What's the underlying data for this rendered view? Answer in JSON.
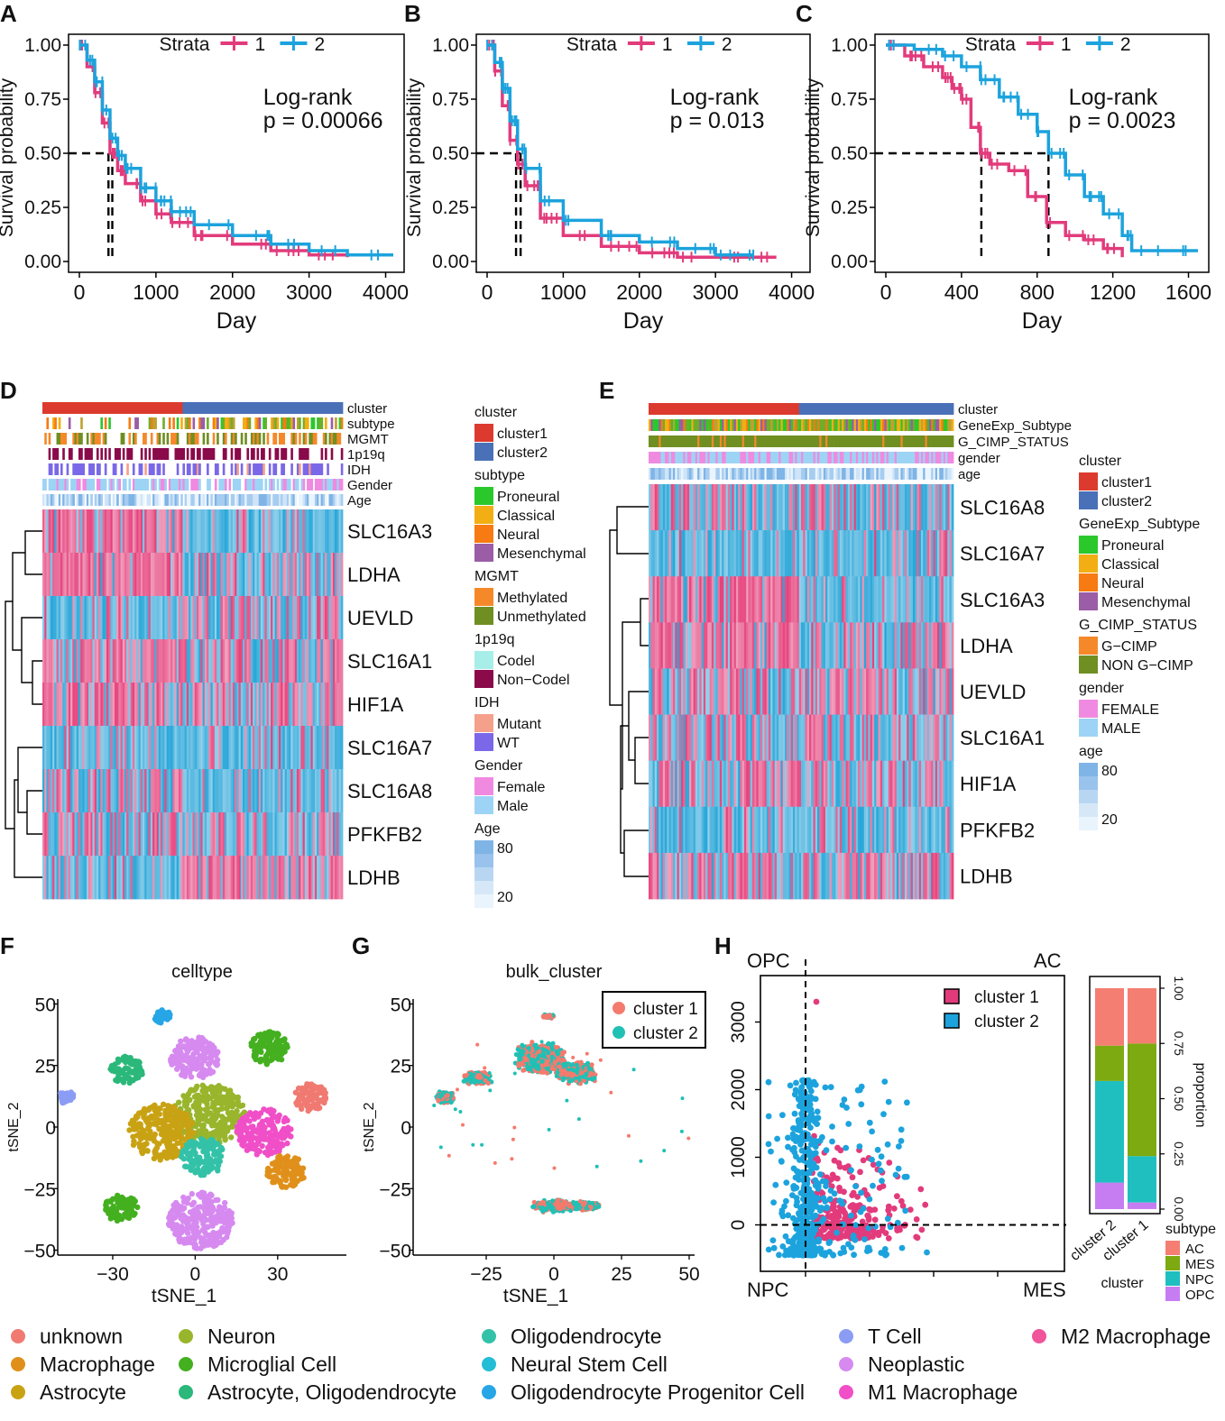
{
  "chart_data": [
    {
      "panel": "A",
      "type": "line",
      "title": "",
      "xlabel": "Day",
      "ylabel": "Survival probability",
      "xticks": [
        "0",
        "1000",
        "2000",
        "3000",
        "4000"
      ],
      "xlim": [
        0,
        4100
      ],
      "yticks": [
        "0.00",
        "0.25",
        "0.50",
        "0.75",
        "1.00"
      ],
      "ylim": [
        0,
        1
      ],
      "legend_title": "Strata",
      "legend": [
        "1",
        "2"
      ],
      "annotation": [
        "Log-rank",
        "p = 0.00066"
      ],
      "median": [
        380,
        430
      ],
      "series": [
        {
          "name": "1",
          "color": "#e23b7c",
          "x": [
            0,
            100,
            200,
            300,
            400,
            500,
            600,
            800,
            1000,
            1200,
            1500,
            2000,
            2500,
            3000,
            3500
          ],
          "y": [
            1.0,
            0.9,
            0.78,
            0.64,
            0.5,
            0.42,
            0.36,
            0.28,
            0.22,
            0.18,
            0.12,
            0.08,
            0.05,
            0.03,
            0.02
          ]
        },
        {
          "name": "2",
          "color": "#1ca3dd",
          "x": [
            0,
            100,
            200,
            300,
            400,
            500,
            600,
            800,
            1000,
            1200,
            1500,
            2000,
            2500,
            3000,
            3500,
            4100
          ],
          "y": [
            1.0,
            0.93,
            0.83,
            0.7,
            0.57,
            0.49,
            0.43,
            0.34,
            0.28,
            0.23,
            0.17,
            0.12,
            0.08,
            0.05,
            0.03,
            0.03
          ]
        }
      ]
    },
    {
      "panel": "B",
      "type": "line",
      "title": "",
      "xlabel": "Day",
      "ylabel": "Survival probability",
      "xticks": [
        "0",
        "1000",
        "2000",
        "3000",
        "4000"
      ],
      "xlim": [
        0,
        4100
      ],
      "yticks": [
        "0.00",
        "0.25",
        "0.50",
        "0.75",
        "1.00"
      ],
      "ylim": [
        0,
        1
      ],
      "legend_title": "Strata",
      "legend": [
        "1",
        "2"
      ],
      "annotation": [
        "Log-rank",
        "p = 0.013"
      ],
      "median": [
        380,
        440
      ],
      "series": [
        {
          "name": "1",
          "color": "#e23b7c",
          "x": [
            0,
            100,
            200,
            300,
            400,
            500,
            700,
            1000,
            1500,
            2000,
            2500,
            3000,
            3800
          ],
          "y": [
            1.0,
            0.88,
            0.72,
            0.56,
            0.45,
            0.35,
            0.2,
            0.12,
            0.07,
            0.04,
            0.02,
            0.02,
            0.02
          ]
        },
        {
          "name": "2",
          "color": "#1ca3dd",
          "x": [
            0,
            100,
            200,
            300,
            400,
            500,
            700,
            1000,
            1500,
            2000,
            2500,
            3000,
            3500
          ],
          "y": [
            1.0,
            0.92,
            0.8,
            0.65,
            0.52,
            0.43,
            0.28,
            0.19,
            0.12,
            0.09,
            0.06,
            0.03,
            0.03
          ]
        }
      ]
    },
    {
      "panel": "C",
      "type": "line",
      "title": "",
      "xlabel": "Day",
      "ylabel": "Survival probability",
      "xticks": [
        "0",
        "400",
        "800",
        "1200",
        "1600"
      ],
      "xlim": [
        0,
        1650
      ],
      "yticks": [
        "0.00",
        "0.25",
        "0.50",
        "0.75",
        "1.00"
      ],
      "ylim": [
        0,
        1
      ],
      "legend_title": "Strata",
      "legend": [
        "1",
        "2"
      ],
      "annotation": [
        "Log-rank",
        "p = 0.0023"
      ],
      "median": [
        505,
        860
      ],
      "series": [
        {
          "name": "1",
          "color": "#e23b7c",
          "x": [
            0,
            100,
            200,
            300,
            350,
            400,
            450,
            500,
            550,
            650,
            750,
            850,
            950,
            1050,
            1150,
            1250
          ],
          "y": [
            1.0,
            0.95,
            0.9,
            0.85,
            0.8,
            0.75,
            0.62,
            0.5,
            0.45,
            0.42,
            0.3,
            0.18,
            0.12,
            0.1,
            0.06,
            0.02
          ]
        },
        {
          "name": "2",
          "color": "#1ca3dd",
          "x": [
            0,
            150,
            300,
            400,
            500,
            600,
            700,
            800,
            860,
            950,
            1050,
            1150,
            1250,
            1300,
            1650
          ],
          "y": [
            1.0,
            0.98,
            0.95,
            0.9,
            0.84,
            0.76,
            0.68,
            0.6,
            0.5,
            0.4,
            0.3,
            0.22,
            0.12,
            0.05,
            0.05
          ]
        }
      ]
    },
    {
      "panel": "D",
      "type": "heatmap",
      "annotation_tracks": [
        "cluster",
        "subtype",
        "MGMT",
        "1p19q",
        "IDH",
        "Gender",
        "Age"
      ],
      "rows": [
        "SLC16A3",
        "LDHA",
        "UEVLD",
        "SLC16A1",
        "HIF1A",
        "SLC16A7",
        "SLC16A8",
        "PFKFB2",
        "LDHB"
      ],
      "row_pattern_cluster1_vs_cluster2": [
        "high-low",
        "high-mid",
        "low-mid",
        "high-mid",
        "high-mid",
        "low-low",
        "mid-low",
        "mid-mid",
        "low-high"
      ],
      "legend": [
        {
          "title": "cluster",
          "items": [
            [
              "cluster1",
              "#dc3a2e"
            ],
            [
              "cluster2",
              "#4a70b8"
            ]
          ]
        },
        {
          "title": "subtype",
          "items": [
            [
              "Proneural",
              "#2bc82b"
            ],
            [
              "Classical",
              "#f2ae13"
            ],
            [
              "Neural",
              "#f77a12"
            ],
            [
              "Mesenchymal",
              "#9a5da6"
            ]
          ]
        },
        {
          "title": "MGMT",
          "items": [
            [
              "Methylated",
              "#f5892a"
            ],
            [
              "Unmethylated",
              "#6f8f22"
            ]
          ]
        },
        {
          "title": "1p19q",
          "items": [
            [
              "Codel",
              "#a8eee8"
            ],
            [
              "Non−Codel",
              "#8a0a4a"
            ]
          ]
        },
        {
          "title": "IDH",
          "items": [
            [
              "Mutant",
              "#f5a08a"
            ],
            [
              "WT",
              "#7b68e8"
            ]
          ]
        },
        {
          "title": "Gender",
          "items": [
            [
              "Female",
              "#f08ae0"
            ],
            [
              "Male",
              "#9dd4f5"
            ]
          ]
        },
        {
          "title": "Age",
          "items": [
            [
              "80",
              "#7fb4e6"
            ],
            [
              "20",
              "#eaf4fc"
            ]
          ]
        }
      ]
    },
    {
      "panel": "E",
      "type": "heatmap",
      "annotation_tracks": [
        "cluster",
        "GeneExp_Subtype",
        "G_CIMP_STATUS",
        "gender",
        "age"
      ],
      "rows": [
        "SLC16A8",
        "SLC16A7",
        "SLC16A3",
        "LDHA",
        "UEVLD",
        "SLC16A1",
        "HIF1A",
        "PFKFB2",
        "LDHB"
      ],
      "row_pattern_cluster1_vs_cluster2": [
        "mid-mid",
        "low-low",
        "high-low",
        "high-mid",
        "mid-mid",
        "mid-mid",
        "mid-mid",
        "low-low",
        "mid-mid"
      ],
      "legend": [
        {
          "title": "cluster",
          "items": [
            [
              "cluster1",
              "#dc3a2e"
            ],
            [
              "cluster2",
              "#4a70b8"
            ]
          ]
        },
        {
          "title": "GeneExp_Subtype",
          "items": [
            [
              "Proneural",
              "#2bc82b"
            ],
            [
              "Classical",
              "#f2ae13"
            ],
            [
              "Neural",
              "#f77a12"
            ],
            [
              "Mesenchymal",
              "#9a5da6"
            ]
          ]
        },
        {
          "title": "G_CIMP_STATUS",
          "items": [
            [
              "G−CIMP",
              "#f5892a"
            ],
            [
              "NON G−CIMP",
              "#6f8f22"
            ]
          ]
        },
        {
          "title": "gender",
          "items": [
            [
              "FEMALE",
              "#f08ae0"
            ],
            [
              "MALE",
              "#9dd4f5"
            ]
          ]
        },
        {
          "title": "age",
          "items": [
            [
              "80",
              "#7fb4e6"
            ],
            [
              "20",
              "#eaf4fc"
            ]
          ]
        }
      ]
    },
    {
      "panel": "F",
      "type": "scatter",
      "title": "celltype",
      "xlabel": "tSNE_1",
      "ylabel": "tSNE_2",
      "xticks": [
        "-30",
        "0",
        "30"
      ],
      "xlim": [
        -50,
        55
      ],
      "yticks": [
        "-50",
        "-25",
        "0",
        "25",
        "50"
      ],
      "ylim": [
        -52,
        52
      ],
      "clusters": [
        {
          "label": "Neuron",
          "color": "#98b52c",
          "cx": 5,
          "cy": 5,
          "r": 13
        },
        {
          "label": "Astrocyte",
          "color": "#c9a214",
          "cx": -12,
          "cy": -2,
          "r": 12
        },
        {
          "label": "Oligodendrocyte",
          "color": "#33c2a8",
          "cx": 3,
          "cy": -12,
          "r": 8
        },
        {
          "label": "M1 Macrophage",
          "color": "#f04fc8",
          "cx": 25,
          "cy": -2,
          "r": 10
        },
        {
          "label": "Macrophage",
          "color": "#e0901a",
          "cx": 33,
          "cy": -18,
          "r": 7
        },
        {
          "label": "Neoplastic",
          "color": "#d68af0",
          "cx": 0,
          "cy": 28,
          "r": 9
        },
        {
          "label": "Neoplastic",
          "color": "#d68af0",
          "cx": 2,
          "cy": -38,
          "r": 12
        },
        {
          "label": "Microglial Cell",
          "color": "#44b020",
          "cx": 27,
          "cy": 32,
          "r": 7
        },
        {
          "label": "Microglial Cell",
          "color": "#44b020",
          "cx": -27,
          "cy": -33,
          "r": 6
        },
        {
          "label": "Astrocyte, Oligodendrocyte",
          "color": "#2bb87a",
          "cx": -25,
          "cy": 23,
          "r": 6
        },
        {
          "label": "Oligodendrocyte Progenitor Cell",
          "color": "#27a6e6",
          "cx": -12,
          "cy": 45,
          "r": 3
        },
        {
          "label": "T Cell",
          "color": "#8b9cf5",
          "cx": -47,
          "cy": 12,
          "r": 3
        },
        {
          "label": "unknown",
          "color": "#f07a72",
          "cx": 42,
          "cy": 12,
          "r": 6
        }
      ]
    },
    {
      "panel": "G",
      "type": "scatter",
      "title": "bulk_cluster",
      "xlabel": "tSNE_1",
      "ylabel": "tSNE_2",
      "xticks": [
        "-25",
        "0",
        "25",
        "50"
      ],
      "xlim": [
        -52,
        52
      ],
      "yticks": [
        "-50",
        "-25",
        "0",
        "25",
        "50"
      ],
      "ylim": [
        -52,
        52
      ],
      "legend": [
        [
          "cluster 1",
          "#f47a6e"
        ],
        [
          "cluster 2",
          "#20c0b5"
        ]
      ]
    },
    {
      "panel": "H",
      "type": "scatter",
      "xlabel": "",
      "ylabel": "",
      "xticks": [],
      "yticks": [
        "0",
        "1000",
        "2000",
        "3000"
      ],
      "ylim": [
        -500,
        3500
      ],
      "corner_labels": {
        "top_left": "OPC",
        "top_right": "AC",
        "bottom_left": "NPC",
        "bottom_right": "MES"
      },
      "legend": [
        [
          "cluster 1",
          "#e23b7c"
        ],
        [
          "cluster 2",
          "#1ca3dd"
        ]
      ]
    },
    {
      "panel": "H-bar",
      "type": "bar",
      "categories": [
        "cluster 2",
        "cluster 1"
      ],
      "xlabel": "cluster",
      "ylabel": "proportion",
      "yticks": [
        "0.00",
        "0.25",
        "0.50",
        "0.75",
        "1.00"
      ],
      "ylim": [
        0,
        1
      ],
      "legend_title": "subtype",
      "series": [
        {
          "name": "OPC",
          "color": "#c77df2",
          "values": [
            0.12,
            0.03
          ]
        },
        {
          "name": "NPC",
          "color": "#1fbfc0",
          "values": [
            0.46,
            0.21
          ]
        },
        {
          "name": "MES",
          "color": "#7caa10",
          "values": [
            0.16,
            0.51
          ]
        },
        {
          "name": "AC",
          "color": "#f57e72",
          "values": [
            0.26,
            0.25
          ]
        }
      ]
    }
  ],
  "panel_letters": [
    "A",
    "B",
    "C",
    "D",
    "E",
    "F",
    "G",
    "H"
  ],
  "celltype_legend": [
    [
      "unknown",
      "#f07a72"
    ],
    [
      "Macrophage",
      "#e0901a"
    ],
    [
      "Astrocyte",
      "#c9a214"
    ],
    [
      "Neuron",
      "#98b52c"
    ],
    [
      "Microglial Cell",
      "#44b020"
    ],
    [
      "Astrocyte, Oligodendrocyte",
      "#2bb87a"
    ],
    [
      "Oligodendrocyte",
      "#33c2a8"
    ],
    [
      "Neural Stem Cell",
      "#23bed6"
    ],
    [
      "Oligodendrocyte Progenitor Cell",
      "#27a6e6"
    ],
    [
      "T Cell",
      "#8b9cf5"
    ],
    [
      "Neoplastic",
      "#d68af0"
    ],
    [
      "M1 Macrophage",
      "#f04fc8"
    ],
    [
      "M2 Macrophage",
      "#f0549a"
    ]
  ]
}
